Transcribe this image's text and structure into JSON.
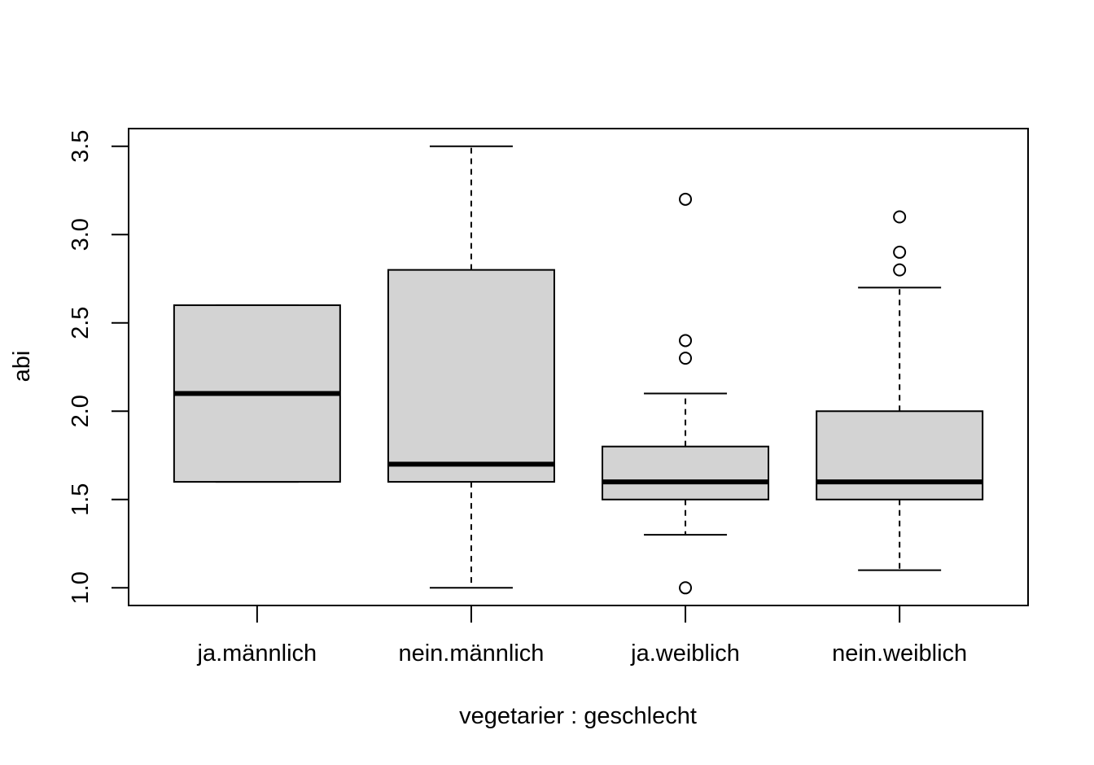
{
  "chart_data": {
    "type": "boxplot",
    "xlabel": "vegetarier : geschlecht",
    "ylabel": "abi",
    "ylim": [
      0.9,
      3.6
    ],
    "yticks": [
      "1.0",
      "1.5",
      "2.0",
      "2.5",
      "3.0",
      "3.5"
    ],
    "categories": [
      "ja.männlich",
      "nein.männlich",
      "ja.weiblich",
      "nein.weiblich"
    ],
    "boxes": [
      {
        "category": "ja.männlich",
        "whisker_low": 1.6,
        "q1": 1.6,
        "median": 2.1,
        "q3": 2.6,
        "whisker_high": 2.6,
        "outliers": []
      },
      {
        "category": "nein.männlich",
        "whisker_low": 1.0,
        "q1": 1.6,
        "median": 1.7,
        "q3": 2.8,
        "whisker_high": 3.5,
        "outliers": []
      },
      {
        "category": "ja.weiblich",
        "whisker_low": 1.3,
        "q1": 1.5,
        "median": 1.6,
        "q3": 1.8,
        "whisker_high": 2.1,
        "outliers": [
          1.0,
          2.3,
          2.4,
          3.2
        ]
      },
      {
        "category": "nein.weiblich",
        "whisker_low": 1.1,
        "q1": 1.5,
        "median": 1.6,
        "q3": 2.0,
        "whisker_high": 2.7,
        "outliers": [
          2.8,
          2.9,
          3.1
        ]
      }
    ],
    "box_fill": "#d3d3d3",
    "line_color": "#000000",
    "grid": false,
    "legend": "none"
  }
}
